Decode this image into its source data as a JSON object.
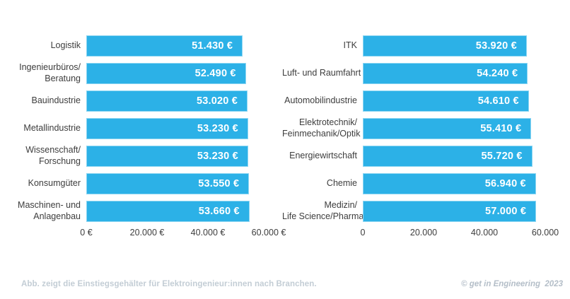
{
  "page": {
    "background_color": "#ffffff"
  },
  "accent": {
    "bar_color": "#2cb1e7",
    "bar_border_color": "#8ed6f2",
    "bar_value_text_color": "#ffffff",
    "category_label_color": "#3d3d3d",
    "caption_color": "#c3cdd5",
    "copyright_color": "#b4bec8"
  },
  "footer": {
    "caption": "Abb. zeigt die Einstiegsgehälter für Elektroingenieur:innen nach Branchen.",
    "copyright": "© get in Engineering  2023"
  },
  "chart_data": [
    {
      "type": "bar",
      "orientation": "horizontal",
      "title": "",
      "categories": [
        "Logistik",
        "Ingenieurbüros/\nBeratung",
        "Bauindustrie",
        "Metallindustrie",
        "Wissenschaft/\nForschung",
        "Konsumgüter",
        "Maschinen- und\nAnlagenbau"
      ],
      "values": [
        51430,
        52490,
        53020,
        53230,
        53230,
        53550,
        53660
      ],
      "value_labels": [
        "51.430 €",
        "52.490 €",
        "53.020 €",
        "53.230 €",
        "53.230 €",
        "53.550 €",
        "53.660 €"
      ],
      "xlim": [
        0,
        60000
      ],
      "x_ticks": [
        "0 €",
        "20.000 €",
        "40.000 €",
        "60.000 €"
      ],
      "grid": false,
      "legend": false
    },
    {
      "type": "bar",
      "orientation": "horizontal",
      "title": "",
      "categories": [
        "ITK",
        "Luft- und Raumfahrt",
        "Automobilindustrie",
        "Elektrotechnik/\nFeinmechanik/Optik",
        "Energiewirtschaft",
        "Chemie",
        "Medizin/\nLife Science/Pharma"
      ],
      "values": [
        53920,
        54240,
        54610,
        55410,
        55720,
        56940,
        57000
      ],
      "value_labels": [
        "53.920 €",
        "54.240 €",
        "54.610 €",
        "55.410 €",
        "55.720 €",
        "56.940 €",
        "57.000 €"
      ],
      "xlim": [
        0,
        60000
      ],
      "x_ticks": [
        "0",
        "20.000",
        "40.000",
        "60.000"
      ],
      "grid": false,
      "legend": false
    }
  ]
}
